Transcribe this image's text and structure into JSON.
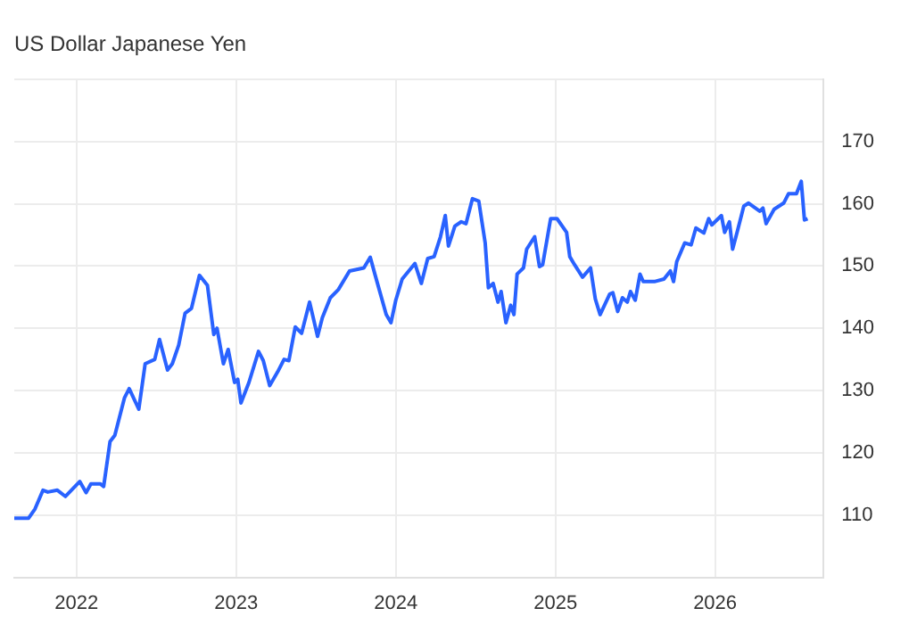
{
  "chart_data": {
    "type": "line",
    "title": "US Dollar Japanese Yen",
    "color": "#2962ff",
    "grid": true,
    "marker": "none",
    "line_style": "solid",
    "x": [
      2021.61,
      2021.7,
      2021.74,
      2021.79,
      2021.82,
      2021.88,
      2021.93,
      2022.02,
      2022.06,
      2022.09,
      2022.15,
      2022.17,
      2022.21,
      2022.24,
      2022.3,
      2022.33,
      2022.39,
      2022.43,
      2022.49,
      2022.52,
      2022.57,
      2022.6,
      2022.64,
      2022.68,
      2022.72,
      2022.77,
      2022.82,
      2022.86,
      2022.88,
      2022.92,
      2022.95,
      2022.99,
      2023.01,
      2023.03,
      2023.08,
      2023.14,
      2023.17,
      2023.21,
      2023.26,
      2023.3,
      2023.33,
      2023.37,
      2023.41,
      2023.46,
      2023.51,
      2023.54,
      2023.59,
      2023.64,
      2023.71,
      2023.8,
      2023.84,
      2023.87,
      2023.94,
      2023.97,
      2024.0,
      2024.04,
      2024.12,
      2024.16,
      2024.2,
      2024.24,
      2024.28,
      2024.31,
      2024.33,
      2024.37,
      2024.41,
      2024.44,
      2024.48,
      2024.52,
      2024.56,
      2024.58,
      2024.61,
      2024.64,
      2024.66,
      2024.69,
      2024.72,
      2024.74,
      2024.76,
      2024.8,
      2024.82,
      2024.87,
      2024.9,
      2024.92,
      2024.97,
      2025.01,
      2025.07,
      2025.09,
      2025.12,
      2025.17,
      2025.22,
      2025.25,
      2025.28,
      2025.34,
      2025.36,
      2025.39,
      2025.42,
      2025.45,
      2025.47,
      2025.5,
      2025.53,
      2025.55,
      2025.62,
      2025.68,
      2025.72,
      2025.74,
      2025.76,
      2025.81,
      2025.85,
      2025.88,
      2025.93,
      2025.96,
      2025.98,
      2026.04,
      2026.06,
      2026.09,
      2026.11,
      2026.14,
      2026.18,
      2026.21,
      2026.28,
      2026.3,
      2026.32,
      2026.37,
      2026.43,
      2026.46,
      2026.51,
      2026.54,
      2026.56,
      2026.58
    ],
    "values": [
      109.5,
      109.5,
      111,
      114,
      113.7,
      114,
      113,
      115.4,
      113.6,
      115,
      115,
      114.6,
      121.8,
      122.8,
      128.8,
      130.3,
      127,
      134.3,
      135,
      138.2,
      133.3,
      134.3,
      137.3,
      142.4,
      143.2,
      148.5,
      146.9,
      139,
      140,
      134.3,
      136.6,
      131.3,
      131.8,
      128,
      131.3,
      136.3,
      134.8,
      130.8,
      133,
      135,
      134.8,
      140.2,
      139.2,
      144.2,
      138.7,
      141.7,
      144.9,
      146.2,
      149.2,
      149.7,
      151.4,
      148.6,
      142.2,
      140.9,
      144.5,
      147.9,
      150.4,
      147.2,
      151.2,
      151.5,
      154.7,
      158.1,
      153.2,
      156.4,
      157.1,
      156.8,
      160.8,
      160.4,
      153.7,
      146.5,
      147.2,
      144.2,
      145.9,
      140.9,
      143.7,
      142.2,
      148.7,
      149.7,
      152.7,
      154.7,
      149.9,
      150.2,
      157.6,
      157.6,
      155.4,
      151.5,
      150.2,
      148.2,
      149.7,
      144.7,
      142.2,
      145.5,
      145.7,
      142.7,
      144.9,
      144.2,
      145.9,
      144.5,
      148.7,
      147.5,
      147.5,
      147.9,
      149.2,
      147.5,
      150.7,
      153.7,
      153.4,
      156.1,
      155.3,
      157.6,
      156.6,
      158.1,
      155.4,
      157.1,
      152.7,
      155.6,
      159.6,
      160.1,
      158.8,
      159.3,
      156.8,
      159.1,
      160.1,
      161.6,
      161.6,
      163.6,
      157.4,
      157.6
    ],
    "xlim": [
      2021.61,
      2026.68
    ],
    "xticks": [
      2022,
      2023,
      2024,
      2025,
      2026
    ],
    "ylim": [
      100,
      180
    ],
    "yticks": [
      {
        "value": 100,
        "label": null
      },
      110,
      120,
      130,
      140,
      150,
      160,
      170,
      {
        "value": 180,
        "label": null
      }
    ]
  }
}
